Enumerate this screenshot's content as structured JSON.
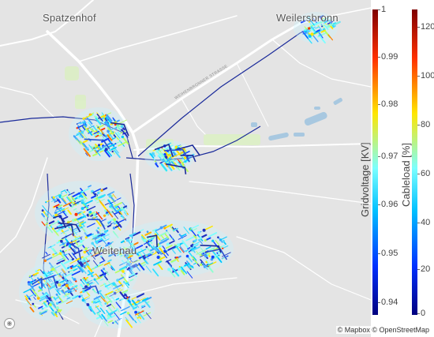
{
  "map": {
    "places": [
      "Spatzenhof",
      "Weilersbronn",
      "Weitenau"
    ],
    "street": "WEIHENBRONNER STRASSE",
    "attribution": "© Mapbox © OpenStreetMap",
    "logo_icon": "mapbox-logo-icon"
  },
  "colorbars": [
    {
      "title": "Gridvoltage [KV]",
      "min": 0.935,
      "max": 1.0,
      "ticks": [
        "1",
        "0.99",
        "0.98",
        "0.97",
        "0.96",
        "0.95",
        "0.94"
      ],
      "colorscale": [
        "#00007f",
        "#0030ff",
        "#00c0ff",
        "#7bffff",
        "#ffe600",
        "#ff3000",
        "#7f0000"
      ]
    },
    {
      "title": "Cableload [%]",
      "min": 0,
      "max": 125,
      "ticks": [
        "120",
        "100",
        "80",
        "60",
        "40",
        "20",
        "0"
      ],
      "colorscale": [
        "#00007f",
        "#0030ff",
        "#00c0ff",
        "#7bffff",
        "#ffe600",
        "#ff3000",
        "#7f0000"
      ]
    }
  ],
  "colors": {
    "land": "#e4e4e4",
    "roads": "#ffffff",
    "water": "#a8c8e0",
    "green": "#dcefc4"
  }
}
